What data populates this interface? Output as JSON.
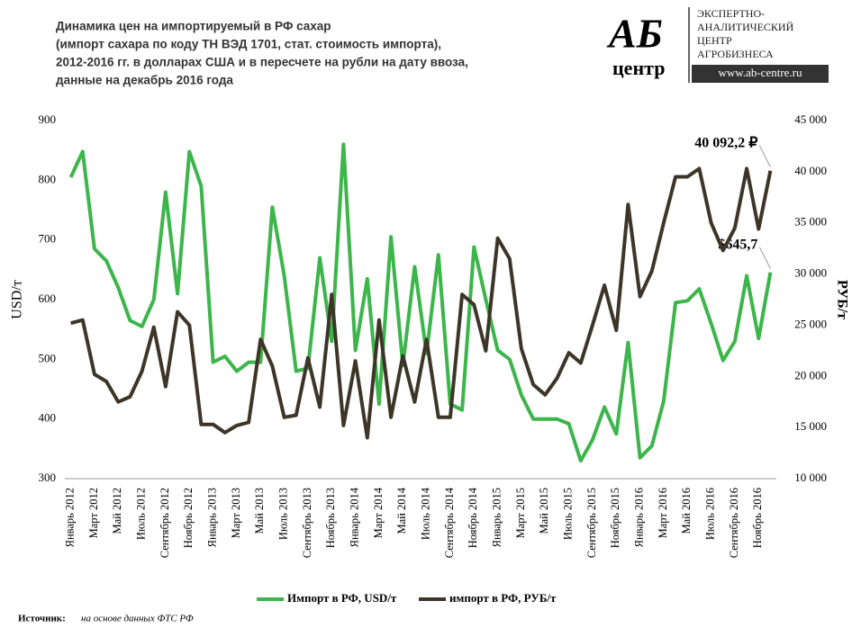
{
  "header": {
    "title": [
      "Динамика цен на импортируемый в РФ сахар",
      "(импорт сахара по коду ТН ВЭД 1701, стат. стоимость импорта),",
      "2012-2016 гг. в долларах США и в пересчете на рубли на дату ввоза,",
      "данные на декабрь 2016 года"
    ]
  },
  "logo": {
    "mark": "АБ",
    "sub": "центр",
    "lines": [
      "ЭКСПЕРТНО-",
      "АНАЛИТИЧЕСКИЙ",
      "ЦЕНТР",
      "АГРОБИЗНЕСА"
    ],
    "url": "www.ab-centre.ru"
  },
  "source": {
    "label": "Источник:",
    "text": "на основе данных ФТС РФ"
  },
  "chart_data": {
    "type": "line",
    "ylabel": "USD/т",
    "y2label": "РУБ/т",
    "categories": [
      "Январь 2012",
      null,
      "Март 2012",
      null,
      "Май 2012",
      null,
      "Июль 2012",
      null,
      "Сентябрь 2012",
      null,
      "Ноябрь 2012",
      null,
      "Январь 2013",
      null,
      "Март 2013",
      null,
      "Май 2013",
      null,
      "Июль 2013",
      null,
      "Сентябрь 2013",
      null,
      "Ноябрь 2013",
      null,
      "Январь 2014",
      null,
      "Март 2014",
      null,
      "Май 2014",
      null,
      "Июль 2014",
      null,
      "Сентябрь 2014",
      null,
      "Ноябрь 2014",
      null,
      "Январь 2015",
      null,
      "Март 2015",
      null,
      "Май 2015",
      null,
      "Июль 2015",
      null,
      "Сентябрь 2015",
      null,
      "Ноябрь 2015",
      null,
      "Январь 2016",
      null,
      "Март 2016",
      null,
      "Май 2016",
      null,
      "Июль 2016",
      null,
      "Сентябрь 2016",
      null,
      "Ноябрь 2016",
      null
    ],
    "series": [
      {
        "name": "Импорт в РФ, USD/т",
        "color": "#3cb54a",
        "values": [
          805,
          848,
          685,
          665,
          620,
          565,
          555,
          600,
          780,
          610,
          848,
          790,
          495,
          505,
          480,
          495,
          495,
          755,
          640,
          480,
          485,
          670,
          530,
          860,
          515,
          635,
          425,
          705,
          490,
          655,
          510,
          675,
          425,
          415,
          688,
          600,
          515,
          500,
          440,
          400,
          400,
          400,
          392,
          330,
          365,
          420,
          375,
          528,
          335,
          355,
          430,
          595,
          598,
          618,
          560,
          498,
          530,
          640,
          535,
          645.7
        ],
        "value_labels": [
          null,
          null,
          null,
          null,
          null,
          null,
          null,
          null,
          null,
          null,
          null,
          null,
          null,
          null,
          null,
          null,
          null,
          null,
          null,
          null,
          null,
          null,
          null,
          null,
          null,
          null,
          null,
          null,
          null,
          null,
          null,
          null,
          null,
          null,
          null,
          null,
          null,
          null,
          null,
          null,
          null,
          null,
          null,
          null,
          null,
          null,
          null,
          null,
          null,
          null,
          null,
          null,
          null,
          null,
          null,
          null,
          null,
          null,
          null,
          "$645,7"
        ]
      },
      {
        "name": "импорт в РФ, РУБ/т",
        "color": "#3d3528",
        "axis": "y2",
        "values": [
          25200,
          25500,
          20200,
          19500,
          17500,
          18000,
          20500,
          24800,
          19000,
          26300,
          25000,
          15300,
          15300,
          14500,
          15200,
          15500,
          23600,
          21000,
          16000,
          16200,
          21800,
          17000,
          28000,
          15200,
          21500,
          14000,
          25500,
          16000,
          22000,
          17500,
          23600,
          16000,
          16000,
          28000,
          27000,
          22500,
          33500,
          31500,
          22700,
          19200,
          18200,
          19800,
          22300,
          21300,
          25000,
          28900,
          24500,
          36800,
          27800,
          30300,
          35000,
          39500,
          39500,
          40300,
          35000,
          32300,
          34500,
          40300,
          34400,
          40092.2
        ],
        "value_labels": [
          null,
          null,
          null,
          null,
          null,
          null,
          null,
          null,
          null,
          null,
          null,
          null,
          null,
          null,
          null,
          null,
          null,
          null,
          null,
          null,
          null,
          null,
          null,
          null,
          null,
          null,
          null,
          null,
          null,
          null,
          null,
          null,
          null,
          null,
          null,
          null,
          null,
          null,
          null,
          null,
          null,
          null,
          null,
          null,
          null,
          null,
          null,
          null,
          null,
          null,
          null,
          null,
          null,
          null,
          null,
          null,
          null,
          null,
          null,
          "40 092,2 ₽"
        ]
      }
    ],
    "ylim": [
      300,
      900
    ],
    "yticks": [
      300,
      400,
      500,
      600,
      700,
      800,
      900
    ],
    "y2lim": [
      10000,
      45000
    ],
    "y2ticks": [
      {
        "value": 10000,
        "label": "10 000"
      },
      {
        "value": 15000,
        "label": "15 000"
      },
      {
        "value": 20000,
        "label": "20 000"
      },
      {
        "value": 25000,
        "label": "25 000"
      },
      {
        "value": 30000,
        "label": "30 000"
      },
      {
        "value": 35000,
        "label": "35 000"
      },
      {
        "value": 40000,
        "label": "40 000"
      },
      {
        "value": 45000,
        "label": "45 000"
      }
    ],
    "grid": false,
    "legend": "bottom"
  }
}
